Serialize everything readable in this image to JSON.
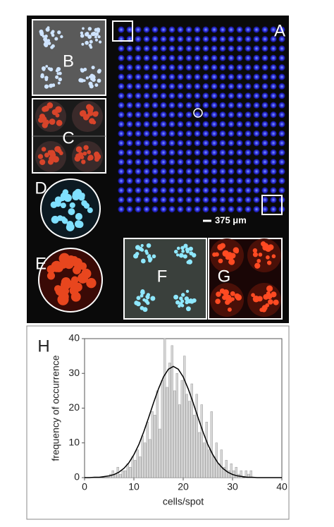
{
  "figure": {
    "panel_labels": [
      "A",
      "B",
      "C",
      "D",
      "E",
      "F",
      "G"
    ],
    "scale_bar": "375 μm"
  },
  "chart_data": {
    "type": "histogram",
    "panel_label": "H",
    "x_label": "cells/spot",
    "y_label": "frequency of occurrence",
    "xlim": [
      0,
      40
    ],
    "ylim": [
      0,
      40
    ],
    "xticks": [
      0,
      10,
      20,
      30,
      40
    ],
    "yticks": [
      0,
      10,
      20,
      30,
      40
    ],
    "color": "#d9d9d9",
    "bins": [
      5,
      5.5,
      6,
      6.5,
      7,
      7.5,
      8,
      8.5,
      9,
      9.5,
      10,
      10.5,
      11,
      11.5,
      12,
      12.5,
      13,
      13.5,
      14,
      14.5,
      15,
      15.5,
      16,
      16.5,
      17,
      17.5,
      18,
      18.5,
      19,
      19.5,
      20,
      20.5,
      21,
      21.5,
      22,
      22.5,
      23,
      23.5,
      24,
      24.5,
      25,
      25.5,
      26,
      26.5,
      27,
      27.5,
      28,
      28.5,
      29,
      29.5,
      30,
      30.5,
      31,
      31.5,
      32,
      32.5,
      33,
      33.5,
      34
    ],
    "values": [
      1,
      2,
      1,
      3,
      1,
      2,
      2,
      4,
      3,
      6,
      5,
      8,
      6,
      12,
      10,
      16,
      11,
      19,
      18,
      25,
      14,
      28,
      40,
      26,
      33,
      38,
      25,
      30,
      21,
      28,
      35,
      24,
      22,
      27,
      18,
      24,
      13,
      21,
      10,
      16,
      8,
      19,
      6,
      10,
      4,
      8,
      3,
      5,
      2,
      4,
      2,
      3,
      1,
      2,
      0,
      2,
      1,
      2
    ],
    "fit": {
      "color": "#000000",
      "x": [
        0,
        1,
        2,
        3,
        4,
        5,
        6,
        7,
        8,
        9,
        10,
        11,
        12,
        13,
        14,
        15,
        16,
        17,
        18,
        19,
        20,
        21,
        22,
        23,
        24,
        25,
        26,
        27,
        28,
        29,
        30,
        31,
        32,
        33,
        34,
        35,
        36,
        37,
        38,
        39,
        40
      ],
      "y": [
        0,
        0,
        0.1,
        0.1,
        0.3,
        0.5,
        0.9,
        1.6,
        2.7,
        4.3,
        6.6,
        9.5,
        13.2,
        17.3,
        21.6,
        25.6,
        29.0,
        31.2,
        32,
        31.2,
        29.0,
        25.6,
        21.6,
        17.3,
        13.2,
        9.5,
        6.6,
        4.3,
        2.7,
        1.6,
        0.9,
        0.5,
        0.3,
        0.1,
        0.1,
        0,
        0,
        0,
        0,
        0,
        0
      ]
    }
  }
}
